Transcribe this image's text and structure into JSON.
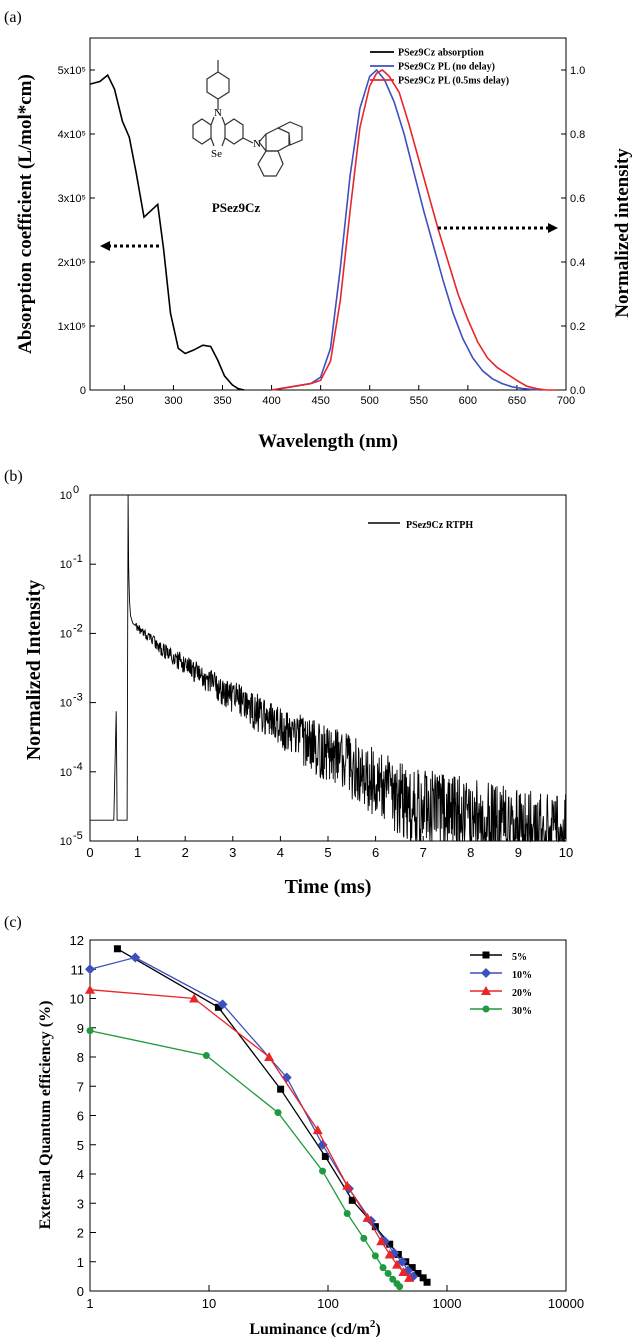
{
  "chart_data": [
    {
      "panel_label": "(a)",
      "type": "line",
      "xlabel": "Wavelength (nm)",
      "ylabel": "Absorption coefficient (L/mol*cm)",
      "ylabel_right": "Normalized intensity",
      "xlim": [
        215,
        700
      ],
      "ylim": [
        0,
        550000
      ],
      "ylim_right": [
        0,
        1.1
      ],
      "x_ticks": [
        250,
        300,
        350,
        400,
        450,
        500,
        550,
        600,
        650,
        700
      ],
      "y_ticks": [
        0,
        100000,
        200000,
        300000,
        400000,
        500000
      ],
      "y_tick_labels": [
        "0",
        "1x10⁵",
        "2x10⁵",
        "3x10⁵",
        "4x10⁵",
        "5x10⁵"
      ],
      "y_ticks_right": [
        0.0,
        0.2,
        0.4,
        0.6,
        0.8,
        1.0
      ],
      "y_tick_labels_right": [
        "0.0",
        "0.2",
        "0.4",
        "0.6",
        "0.8",
        "1.0"
      ],
      "legend_position": "top-right",
      "molecule_label": "PSez9Cz",
      "molecule_atom_labels": [
        "N",
        "Se",
        "N"
      ],
      "series": [
        {
          "name": "PSez9Cz absorption",
          "color": "#000000",
          "axis": "left",
          "x": [
            215,
            225,
            233,
            240,
            248,
            255,
            262,
            270,
            277,
            284,
            290,
            297,
            305,
            312,
            320,
            330,
            338,
            345,
            352,
            360,
            366,
            372
          ],
          "y": [
            478000,
            482000,
            492000,
            470000,
            420000,
            395000,
            340000,
            270000,
            280000,
            290000,
            220000,
            120000,
            65000,
            57000,
            62000,
            70000,
            68000,
            47000,
            22000,
            8000,
            2000,
            0
          ]
        },
        {
          "name": "PSez9Cz PL (no delay)",
          "color": "#3f4fbf",
          "axis": "right",
          "x": [
            400,
            420,
            440,
            450,
            460,
            470,
            480,
            490,
            500,
            507,
            515,
            525,
            535,
            545,
            555,
            565,
            575,
            585,
            595,
            605,
            615,
            625,
            635,
            645,
            655,
            665,
            675
          ],
          "y": [
            0.0,
            0.01,
            0.02,
            0.04,
            0.13,
            0.38,
            0.67,
            0.88,
            0.98,
            1.0,
            0.97,
            0.9,
            0.8,
            0.68,
            0.56,
            0.45,
            0.34,
            0.24,
            0.16,
            0.1,
            0.06,
            0.035,
            0.02,
            0.01,
            0.005,
            0.002,
            0.0
          ]
        },
        {
          "name": "PSez9Cz PL (0.5ms delay)",
          "color": "#e8262a",
          "axis": "right",
          "x": [
            400,
            420,
            440,
            450,
            460,
            470,
            480,
            490,
            500,
            507,
            513,
            520,
            530,
            540,
            550,
            560,
            570,
            580,
            590,
            600,
            610,
            620,
            630,
            640,
            650,
            660,
            670,
            680,
            690
          ],
          "y": [
            0.0,
            0.01,
            0.02,
            0.03,
            0.09,
            0.28,
            0.56,
            0.82,
            0.95,
            0.99,
            1.0,
            0.98,
            0.93,
            0.83,
            0.72,
            0.61,
            0.5,
            0.4,
            0.3,
            0.22,
            0.15,
            0.1,
            0.07,
            0.05,
            0.03,
            0.012,
            0.004,
            0.0,
            0.0
          ]
        }
      ]
    },
    {
      "panel_label": "(b)",
      "type": "line",
      "xlabel": "Time (ms)",
      "ylabel": "Normalized Intensity",
      "xlim": [
        0,
        10
      ],
      "ylim": [
        1e-05,
        1
      ],
      "y_scale": "log",
      "x_ticks": [
        0,
        1,
        2,
        3,
        4,
        5,
        6,
        7,
        8,
        9,
        10
      ],
      "y_tick_exponents": [
        "-5",
        "-4",
        "-3",
        "-2",
        "-1",
        "0"
      ],
      "y_tick_base": "10",
      "legend_position": "top-right",
      "series": [
        {
          "name": "PSez9Cz RTPH",
          "color": "#000000",
          "x": [
            0.0,
            0.5,
            0.55,
            0.57,
            0.6,
            0.78,
            0.8,
            0.81,
            0.83,
            0.85,
            0.9,
            1.0,
            1.5,
            2.0,
            3.0,
            4.0,
            5.0,
            6.0,
            6.5,
            7.0,
            8.0,
            9.0,
            10.0
          ],
          "y": [
            2e-05,
            2e-05,
            0.00075,
            2e-05,
            2e-05,
            2e-05,
            1.0,
            0.1,
            0.03,
            0.018,
            0.014,
            0.012,
            0.006,
            0.0035,
            0.0012,
            0.00045,
            0.00018,
            7e-05,
            4e-05,
            3e-05,
            2e-05,
            1.5e-05,
            1.2e-05
          ]
        }
      ]
    },
    {
      "panel_label": "(c)",
      "type": "line",
      "xlabel": "Luminance (cd/m²)",
      "xlabel_text": "Luminance (cd/m",
      "xlabel_sup": "2",
      "xlabel_end": ")",
      "ylabel": "External Quantum efficiency (%)",
      "x_scale": "log",
      "xlim": [
        1,
        10000
      ],
      "ylim": [
        0,
        12
      ],
      "x_ticks": [
        1,
        10,
        100,
        1000,
        10000
      ],
      "x_tick_labels": [
        "1",
        "10",
        "100",
        "1000",
        "10000"
      ],
      "y_ticks": [
        0,
        1,
        2,
        3,
        4,
        5,
        6,
        7,
        8,
        9,
        10,
        11,
        12
      ],
      "legend_position": "top-right",
      "series": [
        {
          "name": "5%",
          "color": "#000000",
          "marker": "square",
          "x": [
            1.7,
            12,
            40,
            95,
            160,
            250,
            330,
            390,
            450,
            510,
            570,
            630,
            680
          ],
          "y": [
            11.7,
            9.7,
            6.9,
            4.6,
            3.1,
            2.2,
            1.6,
            1.25,
            1.0,
            0.8,
            0.6,
            0.45,
            0.3
          ]
        },
        {
          "name": "10%",
          "color": "#3f4fbf",
          "marker": "diamond",
          "x": [
            1.0,
            2.4,
            13,
            45,
            90,
            150,
            230,
            300,
            360,
            420,
            470,
            520
          ],
          "y": [
            11.0,
            11.4,
            9.8,
            7.3,
            5.0,
            3.5,
            2.4,
            1.7,
            1.3,
            1.0,
            0.7,
            0.5
          ]
        },
        {
          "name": "20%",
          "color": "#e8262a",
          "marker": "triangle",
          "x": [
            1.0,
            7.5,
            32,
            82,
            145,
            215,
            280,
            330,
            380,
            430,
            480
          ],
          "y": [
            10.3,
            10.0,
            8.0,
            5.5,
            3.6,
            2.5,
            1.7,
            1.25,
            0.9,
            0.65,
            0.45
          ]
        },
        {
          "name": "30%",
          "color": "#1e9a3f",
          "marker": "circle",
          "x": [
            1.0,
            9.5,
            38,
            90,
            145,
            200,
            250,
            290,
            320,
            350,
            380,
            400
          ],
          "y": [
            8.9,
            8.05,
            6.1,
            4.1,
            2.65,
            1.8,
            1.2,
            0.8,
            0.6,
            0.4,
            0.25,
            0.15
          ]
        }
      ]
    }
  ]
}
